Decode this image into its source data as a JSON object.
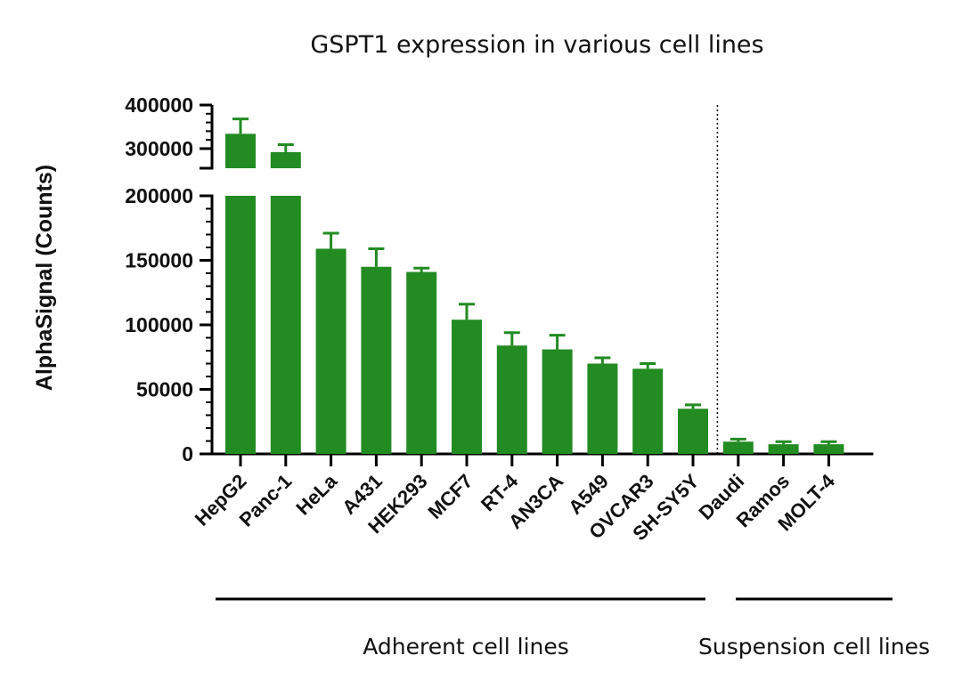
{
  "chart_data": {
    "type": "bar",
    "title": "GSPT1 expression in various cell lines",
    "ylabel": "AlphaSignal (Counts)",
    "xlabel": "",
    "categories": [
      "HepG2",
      "Panc-1",
      "HeLa",
      "A431",
      "HEK293",
      "MCF7",
      "RT-4",
      "AN3CA",
      "A549",
      "OVCAR3",
      "SH-SY5Y",
      "Daudi",
      "Ramos",
      "MOLT-4"
    ],
    "values": [
      334000,
      292000,
      159000,
      145000,
      141000,
      104000,
      84000,
      81000,
      70000,
      66000,
      35000,
      9500,
      7500,
      7500
    ],
    "errors": [
      34000,
      17000,
      12000,
      14000,
      3000,
      12000,
      10000,
      11000,
      4500,
      4000,
      3000,
      2000,
      2000,
      2000
    ],
    "axis_broken": true,
    "ylim_lower": [
      0,
      200000
    ],
    "ylim_upper": [
      255000,
      400000
    ],
    "yticks_lower": [
      "0",
      "50000",
      "100000",
      "150000",
      "200000"
    ],
    "yticks_upper": [
      "300000",
      "400000"
    ],
    "groups": [
      {
        "label": "Adherent cell lines",
        "categories": [
          "HepG2",
          "Panc-1",
          "HeLa",
          "A431",
          "HEK293",
          "MCF7",
          "RT-4",
          "AN3CA",
          "A549",
          "OVCAR3",
          "SH-SY5Y"
        ]
      },
      {
        "label": "Suspension cell lines",
        "categories": [
          "Daudi",
          "Ramos",
          "MOLT-4"
        ]
      }
    ],
    "bar_color": "#228b22",
    "separator_after": "SH-SY5Y",
    "grid": false
  }
}
